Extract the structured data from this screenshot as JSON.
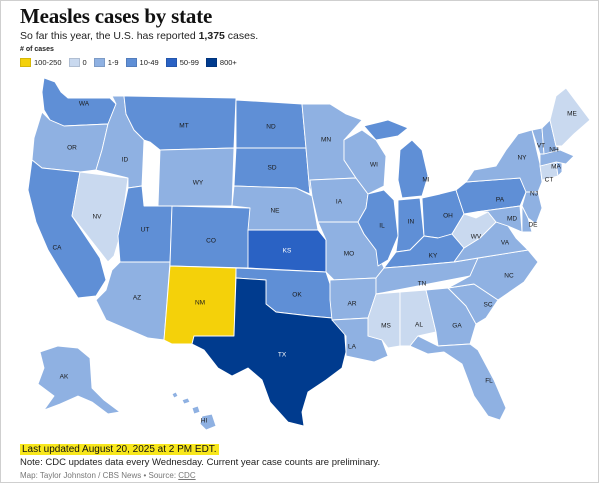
{
  "title": "Measles cases by state",
  "subtitle": {
    "prefix": "So far this year, the U.S. has reported ",
    "total": "1,375",
    "suffix": " cases."
  },
  "legend": {
    "title": "# of cases",
    "items": [
      {
        "label": "100-250",
        "color": "#f4d10a"
      },
      {
        "label": "0",
        "color": "#c9d9ef"
      },
      {
        "label": "1-9",
        "color": "#8fb1e2"
      },
      {
        "label": "10-49",
        "color": "#5f8fd6"
      },
      {
        "label": "50-99",
        "color": "#2a62c4"
      },
      {
        "label": "800+",
        "color": "#003b8e"
      }
    ]
  },
  "states": {
    "WA": "10-49",
    "OR": "1-9",
    "CA": "10-49",
    "NV": "0",
    "ID": "1-9",
    "MT": "10-49",
    "WY": "1-9",
    "UT": "10-49",
    "AZ": "1-9",
    "NM": "100-250",
    "CO": "10-49",
    "ND": "10-49",
    "SD": "10-49",
    "NE": "1-9",
    "KS": "50-99",
    "OK": "10-49",
    "TX": "800+",
    "MN": "1-9",
    "IA": "1-9",
    "MO": "1-9",
    "AR": "1-9",
    "LA": "1-9",
    "WI": "1-9",
    "IL": "10-49",
    "MI": "10-49",
    "IN": "10-49",
    "OH": "10-49",
    "KY": "10-49",
    "TN": "1-9",
    "MS": "0",
    "AL": "0",
    "GA": "1-9",
    "FL": "1-9",
    "SC": "1-9",
    "NC": "1-9",
    "VA": "1-9",
    "WV": "0",
    "PA": "10-49",
    "NY": "1-9",
    "NJ": "1-9",
    "DE": "1-9",
    "MD": "1-9",
    "CT": "0",
    "RI": "1-9",
    "MA": "1-9",
    "VT": "1-9",
    "NH": "1-9",
    "ME": "0",
    "AK": "1-9",
    "HI": "1-9"
  },
  "labels": [
    "WA",
    "OR",
    "CA",
    "NV",
    "ID",
    "MT",
    "WY",
    "UT",
    "AZ",
    "NM",
    "CO",
    "ND",
    "SD",
    "NE",
    "KS",
    "OK",
    "TX",
    "MN",
    "IA",
    "MO",
    "AR",
    "LA",
    "WI",
    "IL",
    "MI",
    "IN",
    "OH",
    "KY",
    "TN",
    "MS",
    "AL",
    "GA",
    "FL",
    "SC",
    "NC",
    "VA",
    "WV",
    "PA",
    "NY",
    "NJ",
    "DE",
    "MD",
    "CT",
    "MA",
    "VT",
    "NH",
    "ME",
    "AK",
    "HI"
  ],
  "footer": {
    "updated": "Last updated August 20, 2025 at 2 PM EDT.",
    "note": "Note: CDC updates data every Wednesday. Current year case counts are preliminary.",
    "credit_prefix": "Map: Taylor Johnston / CBS News • Source: ",
    "credit_link": "CDC"
  }
}
